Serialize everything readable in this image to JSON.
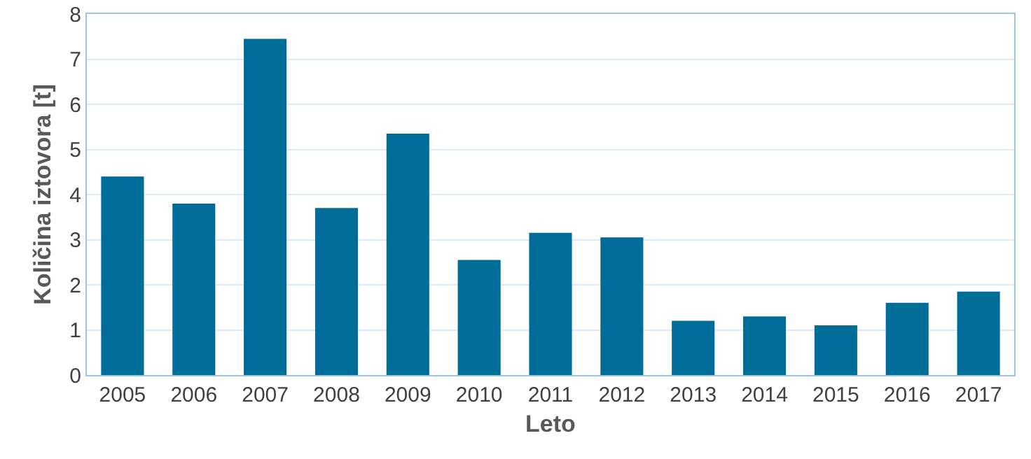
{
  "chart_data": {
    "type": "bar",
    "xlabel": "Leto",
    "ylabel": "Količina iztovora [t]",
    "categories": [
      "2005",
      "2006",
      "2007",
      "2008",
      "2009",
      "2010",
      "2011",
      "2012",
      "2013",
      "2014",
      "2015",
      "2016",
      "2017"
    ],
    "values": [
      4.4,
      3.8,
      7.45,
      3.7,
      5.35,
      2.55,
      3.15,
      3.05,
      1.2,
      1.3,
      1.1,
      1.6,
      1.85
    ],
    "color": "#006c98",
    "ylim": [
      0,
      8
    ],
    "yticks": [
      0,
      1,
      2,
      3,
      4,
      5,
      6,
      7,
      8
    ],
    "grid": "y"
  }
}
